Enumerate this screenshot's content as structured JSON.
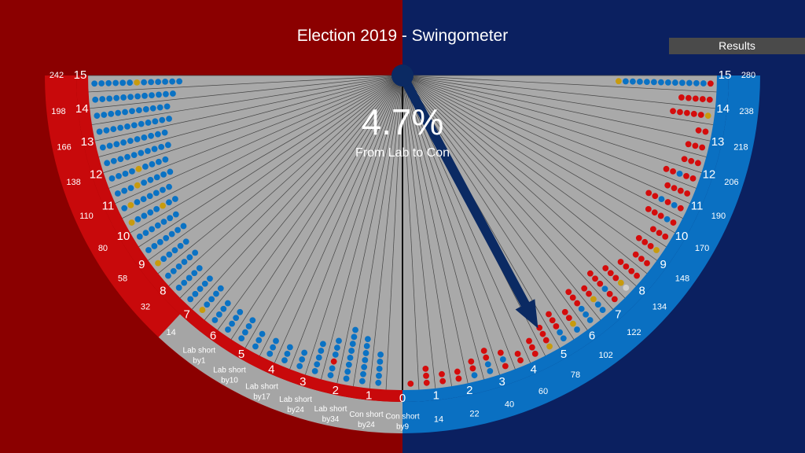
{
  "title": "Election 2019 - Swingometer",
  "results_button": "Results",
  "swing": {
    "value": "4.7%",
    "direction": "From Lab to Con"
  },
  "colors": {
    "lab_bg": "#8b0000",
    "con_bg": "#0b2060",
    "lab_band": "#c8090b",
    "con_band": "#0a70c2",
    "short_band": "#a5a5a5",
    "fan": "#a9a9a9",
    "needle": "#0b2a63",
    "lab_dot": "#d40c0c",
    "con_dot": "#0a72c4",
    "other_dot": "#c89b0e",
    "white_dot": "#cfcfcf"
  },
  "left_scale": [
    {
      "swing": "15",
      "seats": "242"
    },
    {
      "swing": "14",
      "seats": "198"
    },
    {
      "swing": "13",
      "seats": "166"
    },
    {
      "swing": "12",
      "seats": "138"
    },
    {
      "swing": "11",
      "seats": "110"
    },
    {
      "swing": "10",
      "seats": "80"
    },
    {
      "swing": "9",
      "seats": "58"
    },
    {
      "swing": "8",
      "seats": "32"
    },
    {
      "swing": "7",
      "seats": "14"
    },
    {
      "swing": "6",
      "short1": "Lab short",
      "short2": "by1"
    },
    {
      "swing": "5",
      "short1": "Lab short",
      "short2": "by10"
    },
    {
      "swing": "4",
      "short1": "Lab short",
      "short2": "by17"
    },
    {
      "swing": "3",
      "short1": "Lab short",
      "short2": "by24"
    },
    {
      "swing": "2",
      "short1": "Lab short",
      "short2": "by34"
    },
    {
      "swing": "1",
      "short1": "Con short",
      "short2": "by24"
    }
  ],
  "center_label": {
    "swing": "0",
    "short1": "Con short",
    "short2": "by9"
  },
  "right_scale": [
    {
      "swing": "1",
      "seats": "14"
    },
    {
      "swing": "2",
      "seats": "22"
    },
    {
      "swing": "3",
      "seats": "40"
    },
    {
      "swing": "4",
      "seats": "60"
    },
    {
      "swing": "5",
      "seats": "78"
    },
    {
      "swing": "6",
      "seats": "102"
    },
    {
      "swing": "7",
      "seats": "122"
    },
    {
      "swing": "8",
      "seats": "134"
    },
    {
      "swing": "9",
      "seats": "148"
    },
    {
      "swing": "10",
      "seats": "170"
    },
    {
      "swing": "11",
      "seats": "190"
    },
    {
      "swing": "12",
      "seats": "206"
    },
    {
      "swing": "13",
      "seats": "218"
    },
    {
      "swing": "14",
      "seats": "238"
    },
    {
      "swing": "15",
      "seats": "280"
    }
  ],
  "seat_dots": {
    "left": [
      {
        "n": 13,
        "mix": {
          "6": "o"
        }
      },
      {
        "n": 12
      },
      {
        "n": 11
      },
      {
        "n": 11
      },
      {
        "n": 10
      },
      {
        "n": 10
      },
      {
        "n": 9,
        "mix": {
          "4": "o"
        }
      },
      {
        "n": 9,
        "mix": {
          "3": "o"
        }
      },
      {
        "n": 8,
        "mix": {
          "1": "o"
        }
      },
      {
        "n": 8,
        "mix": {
          "0": "o",
          "5": "o"
        }
      },
      {
        "n": 7
      },
      {
        "n": 7
      },
      {
        "n": 6,
        "mix": {
          "0": "o"
        }
      },
      {
        "n": 6
      },
      {
        "n": 5
      },
      {
        "n": 5
      },
      {
        "n": 5,
        "mix": {
          "0": "o"
        }
      },
      {
        "n": 4
      },
      {
        "n": 4
      },
      {
        "n": 4
      },
      {
        "n": 3
      },
      {
        "n": 3
      },
      {
        "n": 3
      },
      {
        "n": 3
      },
      {
        "n": 5
      },
      {
        "n": 6,
        "mix": {
          "2": "l"
        }
      },
      {
        "n": 8
      },
      {
        "n": 7
      },
      {
        "n": 5
      },
      {
        "n": 0
      }
    ],
    "right": [
      {
        "n": 14,
        "mix": {
          "1": "c",
          "2": "c",
          "3": "c",
          "4": "c",
          "5": "c",
          "6": "c",
          "7": "c",
          "8": "c",
          "9": "c",
          "10": "c",
          "11": "c",
          "12": "c",
          "13": "o"
        }
      },
      {
        "n": 5
      },
      {
        "n": 6,
        "mix": {
          "0": "o"
        }
      },
      {
        "n": 2
      },
      {
        "n": 3
      },
      {
        "n": 3
      },
      {
        "n": 5,
        "mix": {
          "2": "c"
        }
      },
      {
        "n": 4
      },
      {
        "n": 6,
        "mix": {
          "1": "c",
          "3": "c"
        }
      },
      {
        "n": 5,
        "mix": {
          "1": "c"
        }
      },
      {
        "n": 3
      },
      {
        "n": 4,
        "mix": {
          "0": "o"
        }
      },
      {
        "n": 3
      },
      {
        "n": 4
      },
      {
        "n": 5,
        "mix": {
          "0": "w",
          "1": "o"
        }
      },
      {
        "n": 6,
        "mix": {
          "2": "c"
        }
      },
      {
        "n": 5,
        "mix": {
          "0": "c",
          "1": "c",
          "2": "o"
        }
      },
      {
        "n": 6,
        "mix": {
          "0": "c",
          "1": "c",
          "2": "c"
        }
      },
      {
        "n": 4,
        "mix": {
          "0": "c",
          "1": "o"
        }
      },
      {
        "n": 5,
        "mix": {
          "0": "c",
          "1": "c"
        }
      },
      {
        "n": 4,
        "mix": {
          "0": "o"
        }
      },
      {
        "n": 3
      },
      {
        "n": 2
      },
      {
        "n": 3,
        "mix": {
          "1": "c"
        }
      },
      {
        "n": 4,
        "mix": {
          "0": "c",
          "1": "c"
        }
      },
      {
        "n": 3,
        "mix": {
          "0": "c"
        }
      },
      {
        "n": 2
      },
      {
        "n": 2
      },
      {
        "n": 3
      },
      {
        "n": 1
      }
    ]
  }
}
